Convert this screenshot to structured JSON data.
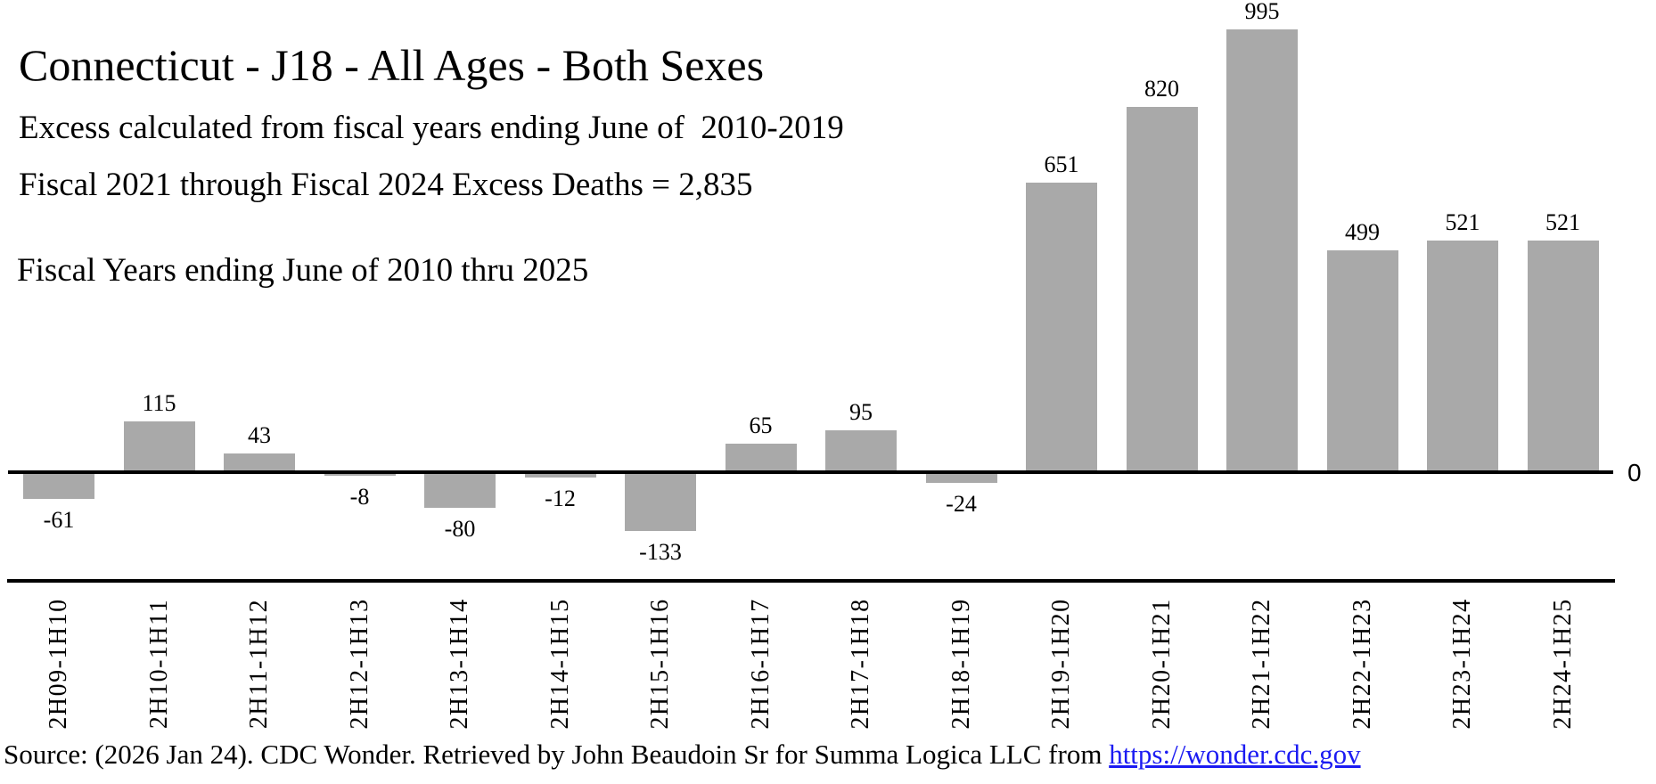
{
  "header": {
    "title": "Connecticut - J18 - All Ages - Both Sexes",
    "subtitle1": "Excess calculated from fiscal years ending June of  2010-2019",
    "subtitle2": "Fiscal 2021 through Fiscal 2024 Excess Deaths = 2,835",
    "annotation": "Fiscal Years ending June of 2010 thru 2025"
  },
  "chart_data": {
    "type": "bar",
    "title": "Connecticut - J18 - All Ages - Both Sexes",
    "categories": [
      "2H09-1H10",
      "2H10-1H11",
      "2H11-1H12",
      "2H12-1H13",
      "2H13-1H14",
      "2H14-1H15",
      "2H15-1H16",
      "2H16-1H17",
      "2H17-1H18",
      "2H18-1H19",
      "2H19-1H20",
      "2H20-1H21",
      "2H21-1H22",
      "2H22-1H23",
      "2H23-1H24",
      "2H24-1H25"
    ],
    "values": [
      -61,
      115,
      43,
      -8,
      -80,
      -12,
      -133,
      65,
      95,
      -24,
      651,
      820,
      995,
      499,
      521,
      521
    ],
    "xlabel": "",
    "ylabel": "",
    "ylim": [
      -200,
      1050
    ],
    "grid": "off",
    "legend": "none",
    "value_labels": "on",
    "zero_axis_label": "0",
    "bar_color": "#A9A9A9",
    "axis_color": "#000000"
  },
  "source": {
    "prefix": "Source: (2026 Jan 24). CDC Wonder. Retrieved by John Beaudoin Sr for Summa Logica LLC from ",
    "link_text": "https://wonder.cdc.gov",
    "link_color": "#1b1bf2"
  }
}
